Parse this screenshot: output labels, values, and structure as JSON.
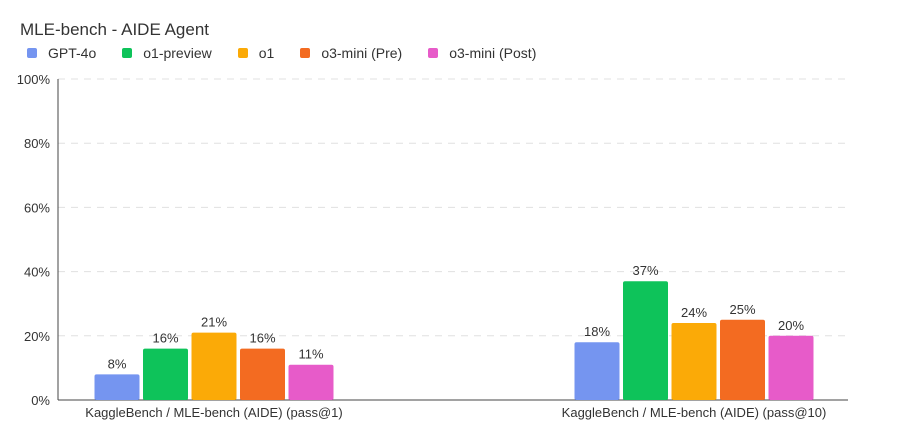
{
  "chart_data": {
    "type": "bar",
    "title": "MLE-bench - AIDE Agent",
    "categories": [
      "KaggleBench / MLE-bench (AIDE) (pass@1)",
      "KaggleBench / MLE-bench (AIDE) (pass@10)"
    ],
    "series": [
      {
        "name": "GPT-4o",
        "color": "#7595f0",
        "values": [
          8,
          18
        ],
        "labels": [
          "8%",
          "18%"
        ]
      },
      {
        "name": "o1-preview",
        "color": "#0ec35a",
        "values": [
          16,
          37
        ],
        "labels": [
          "16%",
          "37%"
        ]
      },
      {
        "name": "o1",
        "color": "#fbaa07",
        "values": [
          21,
          24
        ],
        "labels": [
          "21%",
          "24%"
        ]
      },
      {
        "name": "o3-mini (Pre)",
        "color": "#f36b21",
        "values": [
          16,
          25
        ],
        "labels": [
          "16%",
          "25%"
        ]
      },
      {
        "name": "o3-mini (Post)",
        "color": "#e75bc9",
        "values": [
          11,
          20
        ],
        "labels": [
          "11%",
          "20%"
        ]
      }
    ],
    "ylim": [
      0,
      100
    ],
    "yticks": [
      "0%",
      "20%",
      "40%",
      "60%",
      "80%",
      "100%"
    ],
    "ytick_values": [
      0,
      20,
      40,
      60,
      80,
      100
    ],
    "grid": true,
    "legend_position": "top-left"
  }
}
